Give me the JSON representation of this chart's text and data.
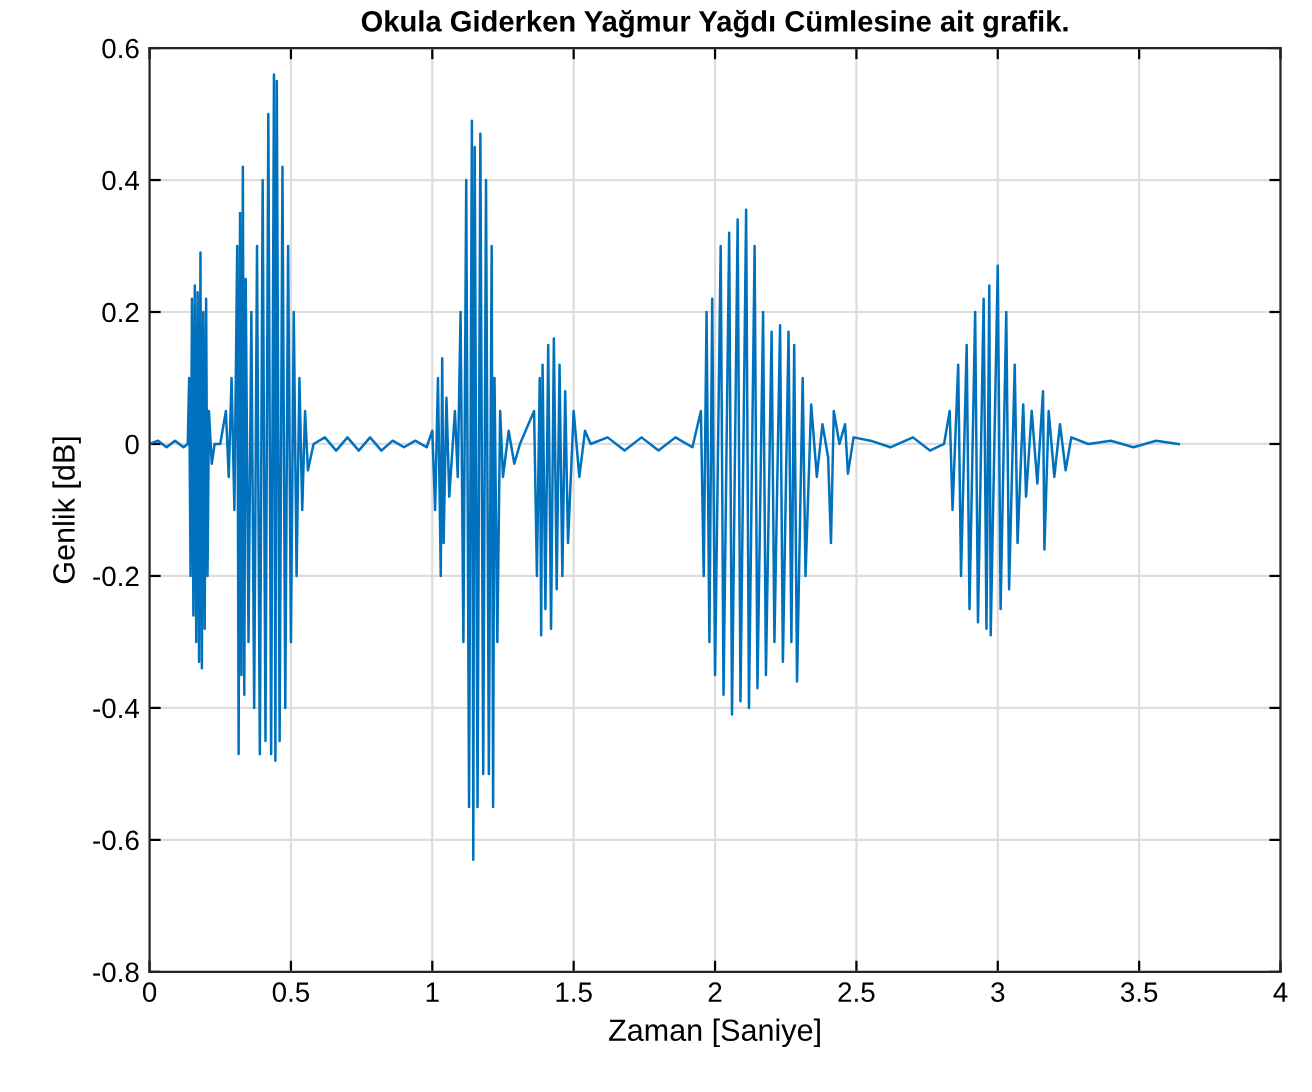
{
  "chart_data": {
    "type": "line",
    "title": "Okula Giderken Yağmur Yağdı Cümlesine ait grafik.",
    "xlabel": "Zaman [Saniye]",
    "ylabel": "Genlik [dB]",
    "xlim": [
      0,
      4
    ],
    "xticks": [
      0,
      0.5,
      1,
      1.5,
      2,
      2.5,
      3,
      3.5,
      4
    ],
    "ylim": [
      -0.8,
      0.6
    ],
    "yticks": [
      -0.8,
      -0.6,
      -0.4,
      -0.2,
      0,
      0.2,
      0.4,
      0.6
    ],
    "grid": true,
    "marker": "none",
    "line_style": "solid",
    "series": [
      {
        "color": "#0072bd",
        "x": [
          0.0,
          0.03,
          0.06,
          0.09,
          0.12,
          0.135,
          0.14,
          0.145,
          0.15,
          0.155,
          0.16,
          0.165,
          0.17,
          0.175,
          0.18,
          0.185,
          0.19,
          0.195,
          0.2,
          0.205,
          0.21,
          0.22,
          0.23,
          0.25,
          0.27,
          0.28,
          0.29,
          0.3,
          0.31,
          0.315,
          0.32,
          0.325,
          0.33,
          0.335,
          0.34,
          0.35,
          0.36,
          0.37,
          0.38,
          0.39,
          0.4,
          0.41,
          0.42,
          0.43,
          0.44,
          0.445,
          0.45,
          0.46,
          0.47,
          0.48,
          0.49,
          0.5,
          0.51,
          0.52,
          0.53,
          0.54,
          0.55,
          0.56,
          0.58,
          0.62,
          0.66,
          0.7,
          0.74,
          0.78,
          0.82,
          0.86,
          0.9,
          0.94,
          0.98,
          1.0,
          1.01,
          1.02,
          1.03,
          1.035,
          1.04,
          1.05,
          1.06,
          1.08,
          1.09,
          1.1,
          1.11,
          1.12,
          1.13,
          1.14,
          1.145,
          1.15,
          1.16,
          1.17,
          1.18,
          1.19,
          1.2,
          1.21,
          1.215,
          1.22,
          1.23,
          1.24,
          1.25,
          1.27,
          1.29,
          1.31,
          1.33,
          1.36,
          1.37,
          1.38,
          1.385,
          1.39,
          1.4,
          1.41,
          1.42,
          1.43,
          1.44,
          1.45,
          1.46,
          1.47,
          1.48,
          1.5,
          1.52,
          1.54,
          1.56,
          1.62,
          1.68,
          1.74,
          1.8,
          1.86,
          1.92,
          1.95,
          1.96,
          1.97,
          1.98,
          1.99,
          2.0,
          2.02,
          2.03,
          2.05,
          2.06,
          2.08,
          2.09,
          2.11,
          2.12,
          2.14,
          2.15,
          2.17,
          2.18,
          2.2,
          2.21,
          2.23,
          2.24,
          2.26,
          2.27,
          2.28,
          2.29,
          2.31,
          2.32,
          2.34,
          2.36,
          2.38,
          2.4,
          2.41,
          2.42,
          2.44,
          2.46,
          2.47,
          2.49,
          2.55,
          2.62,
          2.7,
          2.76,
          2.81,
          2.83,
          2.84,
          2.86,
          2.87,
          2.89,
          2.9,
          2.92,
          2.93,
          2.95,
          2.96,
          2.97,
          2.975,
          3.0,
          3.01,
          3.03,
          3.04,
          3.06,
          3.07,
          3.09,
          3.1,
          3.12,
          3.14,
          3.16,
          3.165,
          3.18,
          3.2,
          3.22,
          3.24,
          3.26,
          3.32,
          3.4,
          3.48,
          3.56,
          3.64
        ],
        "values": [
          0.0,
          0.005,
          -0.005,
          0.005,
          -0.005,
          0.0,
          0.1,
          -0.2,
          0.22,
          -0.26,
          0.24,
          -0.3,
          0.23,
          -0.33,
          0.29,
          -0.34,
          0.2,
          -0.28,
          0.22,
          -0.2,
          0.05,
          -0.03,
          0.0,
          0.0,
          0.05,
          -0.05,
          0.1,
          -0.1,
          0.3,
          -0.47,
          0.35,
          -0.35,
          0.42,
          -0.38,
          0.25,
          -0.3,
          0.2,
          -0.4,
          0.3,
          -0.47,
          0.4,
          -0.45,
          0.5,
          -0.47,
          0.56,
          -0.48,
          0.55,
          -0.45,
          0.42,
          -0.4,
          0.3,
          -0.3,
          0.2,
          -0.2,
          0.1,
          -0.1,
          0.05,
          -0.04,
          0.0,
          0.01,
          -0.01,
          0.01,
          -0.01,
          0.01,
          -0.01,
          0.005,
          -0.005,
          0.005,
          -0.005,
          0.02,
          -0.1,
          0.1,
          -0.2,
          0.13,
          -0.15,
          0.07,
          -0.08,
          0.05,
          -0.05,
          0.2,
          -0.3,
          0.4,
          -0.55,
          0.49,
          -0.63,
          0.45,
          -0.55,
          0.47,
          -0.5,
          0.4,
          -0.5,
          0.3,
          -0.55,
          0.1,
          -0.3,
          0.05,
          -0.05,
          0.02,
          -0.03,
          0.0,
          0.02,
          0.05,
          -0.2,
          0.1,
          -0.29,
          0.12,
          -0.25,
          0.15,
          -0.28,
          0.16,
          -0.22,
          0.12,
          -0.2,
          0.08,
          -0.15,
          0.05,
          -0.05,
          0.02,
          0.0,
          0.01,
          -0.01,
          0.01,
          -0.01,
          0.01,
          -0.005,
          0.05,
          -0.2,
          0.2,
          -0.3,
          0.22,
          -0.35,
          0.3,
          -0.38,
          0.32,
          -0.41,
          0.34,
          -0.39,
          0.355,
          -0.4,
          0.3,
          -0.37,
          0.2,
          -0.35,
          0.17,
          -0.3,
          0.18,
          -0.33,
          0.17,
          -0.3,
          0.15,
          -0.36,
          0.1,
          -0.2,
          0.06,
          -0.05,
          0.03,
          -0.02,
          -0.15,
          0.05,
          0.0,
          0.03,
          -0.045,
          0.01,
          0.005,
          -0.005,
          0.01,
          -0.01,
          0.0,
          0.05,
          -0.1,
          0.12,
          -0.2,
          0.15,
          -0.25,
          0.2,
          -0.27,
          0.22,
          -0.28,
          0.24,
          -0.29,
          0.27,
          -0.25,
          0.2,
          -0.22,
          0.12,
          -0.15,
          0.06,
          -0.08,
          0.05,
          -0.06,
          0.08,
          -0.16,
          0.05,
          -0.05,
          0.03,
          -0.04,
          0.01,
          0.0,
          0.005,
          -0.005,
          0.005,
          0.0
        ]
      }
    ]
  }
}
